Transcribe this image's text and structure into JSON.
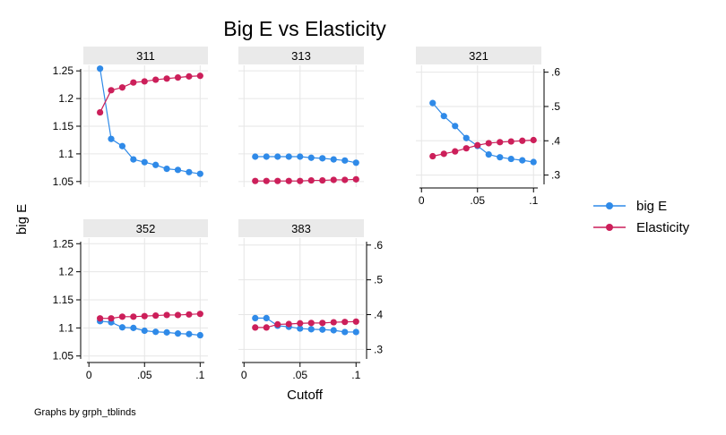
{
  "title": "Big E vs Elasticity",
  "xlabel": "Cutoff",
  "ylabel": "big E",
  "note": "Graphs by grph_tblinds",
  "colors": {
    "bigE": "#2f8ae8",
    "elasticity": "#cc1f5a",
    "strip": "#eaeaea",
    "grid": "#e6e6e6"
  },
  "legend": [
    {
      "label": "big E",
      "color": "#2f8ae8"
    },
    {
      "label": "Elasticity",
      "color": "#cc1f5a"
    }
  ],
  "chart_data": {
    "type": "line",
    "x": [
      0.01,
      0.02,
      0.03,
      0.04,
      0.05,
      0.06,
      0.07,
      0.08,
      0.09,
      0.1
    ],
    "x_ticks": [
      0,
      0.05,
      0.1
    ],
    "x_tick_labels": [
      "0",
      ".05",
      ".1"
    ],
    "xlim": [
      -0.005,
      0.107
    ],
    "left_axis": {
      "label": "big E",
      "ylim": [
        1.04,
        1.26
      ],
      "ticks": [
        1.05,
        1.1,
        1.15,
        1.2,
        1.25
      ],
      "tick_labels": [
        "1.05",
        "1.1",
        "1.15",
        "1.2",
        "1.25"
      ]
    },
    "right_axis": {
      "ylim": [
        0.265,
        0.62
      ],
      "ticks": [
        0.3,
        0.4,
        0.5,
        0.6
      ],
      "tick_labels": [
        ".3",
        ".4",
        ".5",
        ".6"
      ]
    },
    "grid": true,
    "legend_position": "right",
    "panels": [
      {
        "label": "311",
        "series": [
          {
            "name": "big E",
            "axis": "left",
            "values": [
              1.254,
              1.127,
              1.114,
              1.09,
              1.085,
              1.08,
              1.073,
              1.071,
              1.067,
              1.064
            ]
          },
          {
            "name": "Elasticity",
            "axis": "left",
            "values": [
              1.175,
              1.215,
              1.22,
              1.229,
              1.231,
              1.234,
              1.236,
              1.238,
              1.24,
              1.241
            ]
          }
        ]
      },
      {
        "label": "313",
        "series": [
          {
            "name": "big E",
            "axis": "left",
            "values": [
              1.095,
              1.095,
              1.095,
              1.095,
              1.095,
              1.093,
              1.092,
              1.09,
              1.088,
              1.084
            ]
          },
          {
            "name": "Elasticity",
            "axis": "left",
            "values": [
              1.051,
              1.051,
              1.051,
              1.051,
              1.051,
              1.052,
              1.052,
              1.053,
              1.053,
              1.054
            ]
          }
        ]
      },
      {
        "label": "321",
        "series": [
          {
            "name": "big E",
            "axis": "right",
            "values": [
              0.51,
              0.472,
              0.443,
              0.408,
              0.385,
              0.36,
              0.352,
              0.347,
              0.343,
              0.338
            ]
          },
          {
            "name": "Elasticity",
            "axis": "right",
            "values": [
              0.355,
              0.362,
              0.369,
              0.378,
              0.387,
              0.393,
              0.396,
              0.398,
              0.4,
              0.402
            ]
          }
        ]
      },
      {
        "label": "352",
        "series": [
          {
            "name": "big E",
            "axis": "left",
            "values": [
              1.112,
              1.11,
              1.101,
              1.1,
              1.095,
              1.093,
              1.092,
              1.09,
              1.089,
              1.087
            ]
          },
          {
            "name": "Elasticity",
            "axis": "left",
            "values": [
              1.117,
              1.117,
              1.12,
              1.12,
              1.121,
              1.122,
              1.123,
              1.123,
              1.124,
              1.125
            ]
          }
        ]
      },
      {
        "label": "383",
        "series": [
          {
            "name": "big E",
            "axis": "right",
            "values": [
              0.39,
              0.39,
              0.368,
              0.365,
              0.36,
              0.358,
              0.357,
              0.355,
              0.35,
              0.35
            ]
          },
          {
            "name": "Elasticity",
            "axis": "right",
            "values": [
              0.363,
              0.363,
              0.372,
              0.373,
              0.375,
              0.376,
              0.376,
              0.378,
              0.379,
              0.38
            ]
          }
        ]
      }
    ]
  }
}
